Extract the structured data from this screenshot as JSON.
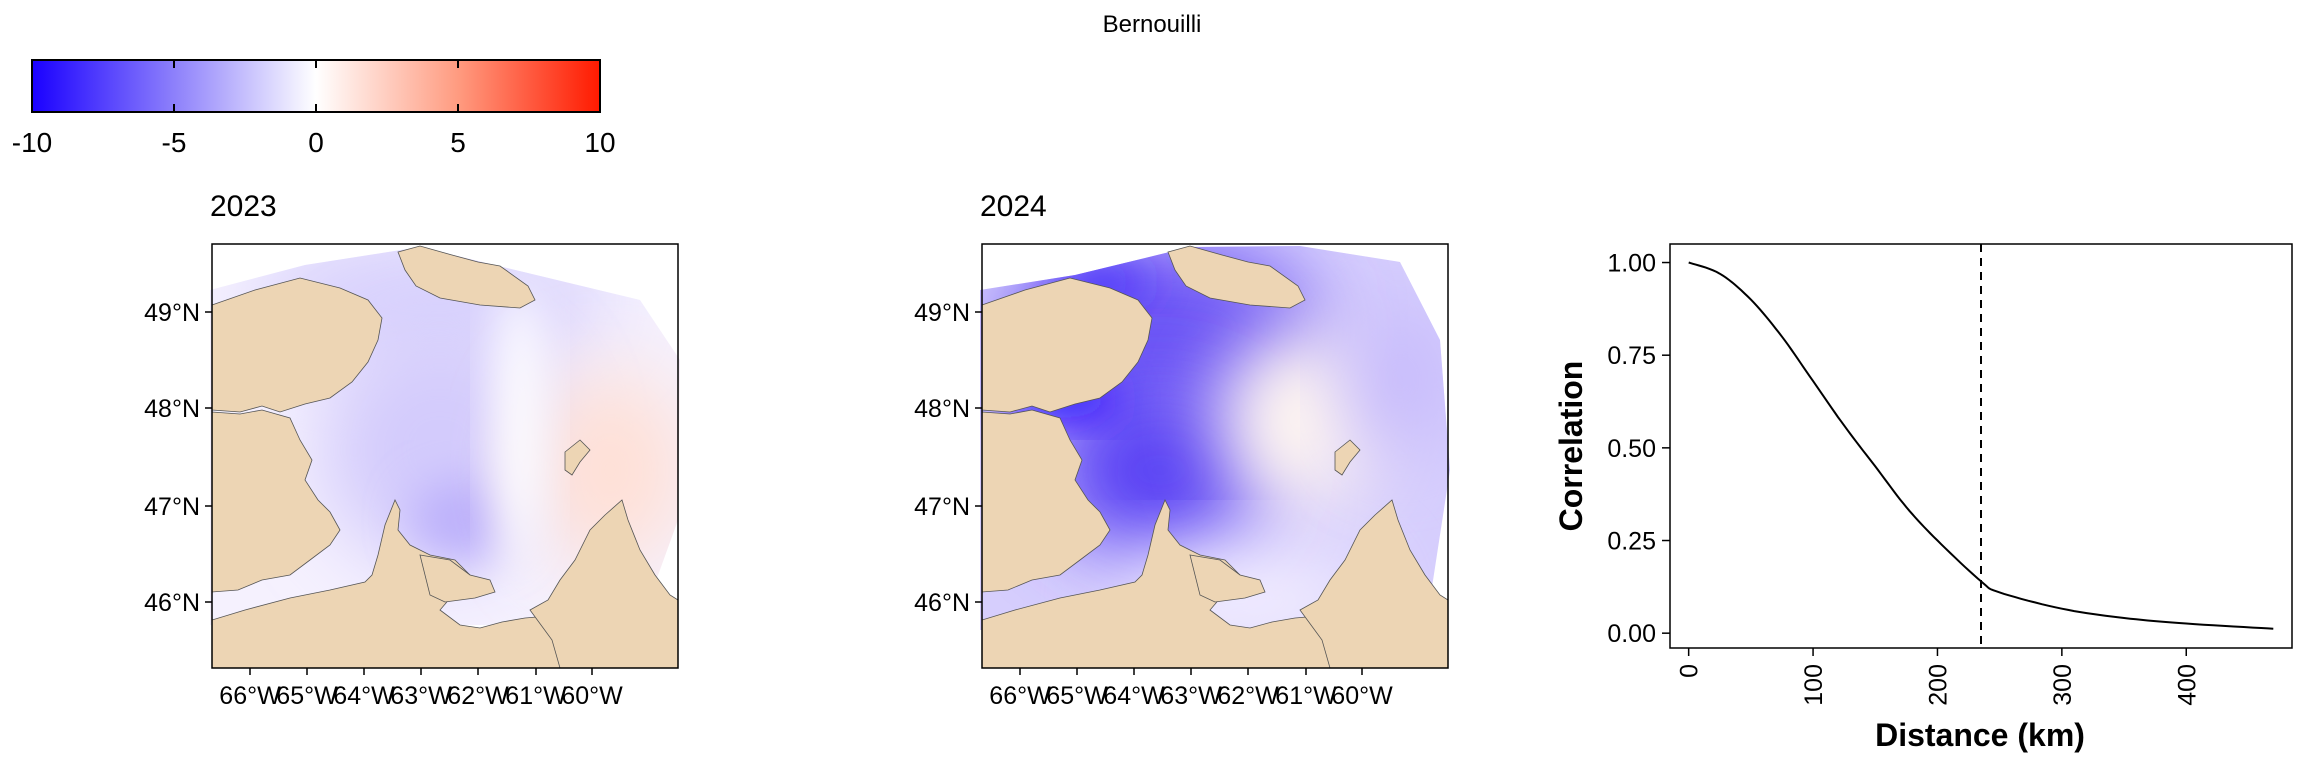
{
  "figure": {
    "title": "Bernouilli"
  },
  "colorbar": {
    "min": -10,
    "max": 10,
    "ticks": [
      "-10",
      "-5",
      "0",
      "5",
      "10"
    ],
    "colors": {
      "low": "#1a00ff",
      "mid": "#ffffff",
      "high": "#ff1a00"
    }
  },
  "maps": [
    {
      "title": "2023",
      "lat_ticks": [
        "49°N",
        "48°N",
        "47°N",
        "46°N"
      ],
      "lon_ticks": [
        "66°W",
        "65°W",
        "64°W",
        "63°W",
        "62°W",
        "61°W",
        "60°W"
      ],
      "field_range": {
        "min": -3,
        "max": 1.5
      },
      "land_color": "#edd5b4"
    },
    {
      "title": "2024",
      "lat_ticks": [
        "49°N",
        "48°N",
        "47°N",
        "46°N"
      ],
      "lon_ticks": [
        "66°W",
        "65°W",
        "64°W",
        "63°W",
        "62°W",
        "61°W",
        "60°W"
      ],
      "field_range": {
        "min": -10,
        "max": 0.5
      },
      "land_color": "#edd5b4"
    }
  ],
  "chart_data": {
    "type": "line",
    "title": "",
    "xlabel": "Distance (km)",
    "ylabel": "Correlation",
    "xlim": [
      -15,
      485
    ],
    "ylim": [
      -0.04,
      1.05
    ],
    "x_ticks": [
      0,
      100,
      200,
      300,
      400
    ],
    "y_ticks": [
      "0.00",
      "0.25",
      "0.50",
      "0.75",
      "1.00"
    ],
    "x": [
      0,
      25,
      50,
      75,
      100,
      125,
      150,
      175,
      200,
      235,
      250,
      300,
      350,
      400,
      470
    ],
    "y": [
      1.0,
      0.97,
      0.9,
      0.8,
      0.68,
      0.56,
      0.45,
      0.34,
      0.25,
      0.14,
      0.11,
      0.066,
      0.041,
      0.026,
      0.012
    ],
    "vline": 235,
    "grid": false,
    "legend": "none"
  }
}
